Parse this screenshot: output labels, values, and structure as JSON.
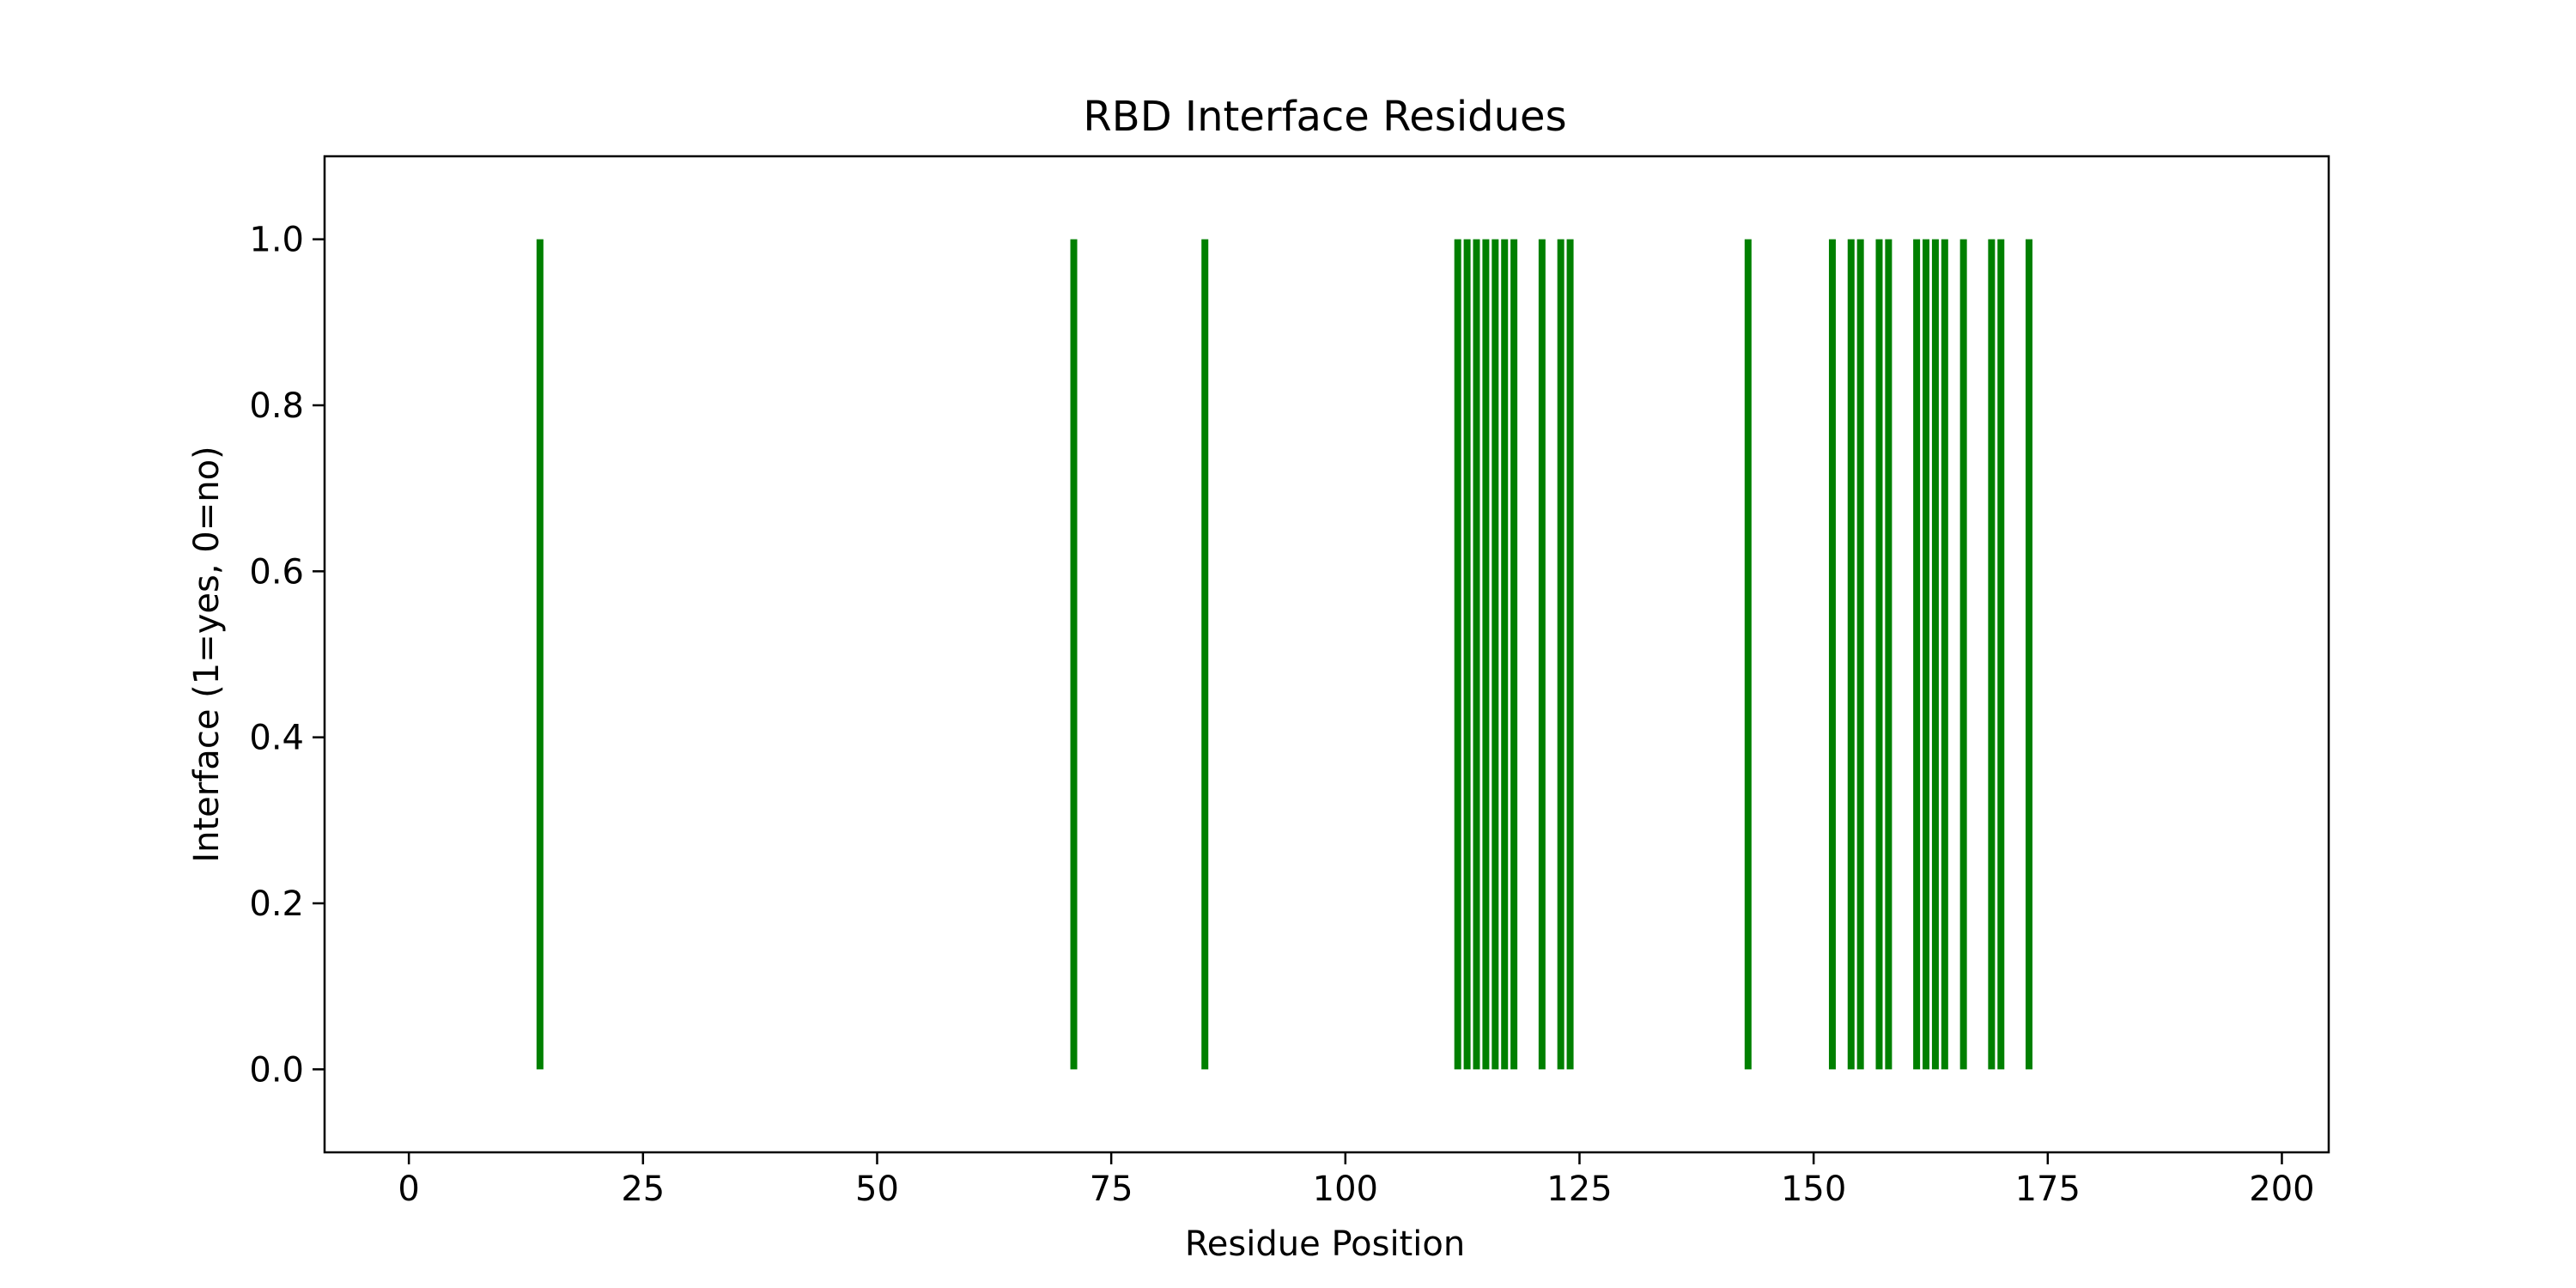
{
  "chart_data": {
    "type": "bar",
    "title": "RBD Interface Residues",
    "xlabel": "Residue Position",
    "ylabel": "Interface (1=yes, 0=no)",
    "xlim": [
      -9,
      205
    ],
    "ylim": [
      -0.1,
      1.1
    ],
    "xticks": [
      0,
      25,
      50,
      75,
      100,
      125,
      150,
      175,
      200
    ],
    "yticks": [
      0.0,
      0.2,
      0.4,
      0.6,
      0.8,
      1.0
    ],
    "ytick_labels": [
      "0.0",
      "0.2",
      "0.4",
      "0.6",
      "0.8",
      "1.0"
    ],
    "grid": false,
    "legend": false,
    "color": "#008000",
    "series": [
      {
        "x": [
          14,
          71,
          85,
          112,
          113,
          114,
          115,
          116,
          117,
          118,
          121,
          123,
          124,
          143,
          152,
          154,
          155,
          157,
          158,
          161,
          162,
          163,
          164,
          166,
          169,
          170,
          173
        ],
        "y0": 0,
        "y1": 1
      }
    ]
  }
}
